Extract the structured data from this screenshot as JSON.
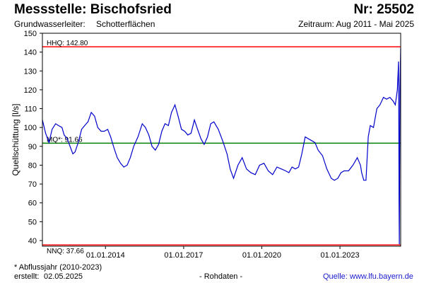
{
  "header": {
    "title": "Messstelle: Bischofsried",
    "nr": "Nr: 25502",
    "aquifer_label": "Grundwasserleiter:",
    "aquifer_value": "Schotterflächen",
    "period": "Zeitraum: Aug 2011 - Mai 2025"
  },
  "footer": {
    "footnote": "* Abflussjahr (2010-2023)",
    "created_label": "erstellt:",
    "created_date": "02.05.2025",
    "raw_data": "- Rohdaten -",
    "source_label": "Quelle:",
    "source_url": "www.lfu.bayern.de"
  },
  "colors": {
    "series": "#0000cc",
    "hhq": "#ff0000",
    "nnq": "#ff0000",
    "mq": "#008000",
    "axis": "#000000"
  },
  "chart_data": {
    "type": "line",
    "title": "Messstelle: Bischofsried",
    "ylabel": "Quellschüttung [l/s]",
    "xlabel": "",
    "ylim": [
      37,
      150
    ],
    "xlim": [
      "2011-08-01",
      "2025-05-01"
    ],
    "grid": false,
    "yticks": [
      40,
      50,
      60,
      70,
      80,
      90,
      100,
      110,
      120,
      130,
      140,
      150
    ],
    "xticks": [
      "01.01.2014",
      "01.01.2017",
      "01.01.2020",
      "01.01.2023"
    ],
    "reference_lines": [
      {
        "label": "HHQ: 142.80",
        "value": 142.8
      },
      {
        "label": "MQ*: 91.66",
        "value": 91.66
      },
      {
        "label": "NNQ: 37.66",
        "value": 37.66
      }
    ],
    "series": [
      {
        "x": [
          "2011-08-01",
          "2011-09-15",
          "2011-11-01",
          "2011-12-15",
          "2012-02-01",
          "2012-03-15",
          "2012-05-01",
          "2012-06-01",
          "2012-07-15",
          "2012-09-01",
          "2012-10-01",
          "2012-11-01",
          "2012-12-15",
          "2013-02-01",
          "2013-03-15",
          "2013-05-01",
          "2013-06-15",
          "2013-08-01",
          "2013-09-15",
          "2013-11-01",
          "2013-12-15",
          "2014-02-01",
          "2014-03-15",
          "2014-05-01",
          "2014-06-15",
          "2014-08-01",
          "2014-09-15",
          "2014-11-01",
          "2014-12-15",
          "2015-02-01",
          "2015-04-01",
          "2015-06-01",
          "2015-07-15",
          "2015-09-01",
          "2015-10-15",
          "2015-12-01",
          "2016-01-15",
          "2016-03-01",
          "2016-04-15",
          "2016-06-01",
          "2016-07-15",
          "2016-09-01",
          "2016-10-15",
          "2016-12-01",
          "2017-01-15",
          "2017-03-01",
          "2017-04-15",
          "2017-06-01",
          "2017-07-15",
          "2017-09-01",
          "2017-10-15",
          "2017-12-01",
          "2018-01-15",
          "2018-03-01",
          "2018-05-01",
          "2018-07-01",
          "2018-09-01",
          "2018-10-15",
          "2018-12-01",
          "2019-02-01",
          "2019-04-01",
          "2019-06-01",
          "2019-08-01",
          "2019-10-01",
          "2019-12-01",
          "2020-02-01",
          "2020-04-01",
          "2020-06-01",
          "2020-08-01",
          "2020-10-01",
          "2020-12-01",
          "2021-01-15",
          "2021-03-01",
          "2021-04-15",
          "2021-06-01",
          "2021-07-15",
          "2021-09-01",
          "2021-10-15",
          "2021-12-01",
          "2022-01-15",
          "2022-03-01",
          "2022-05-01",
          "2022-07-01",
          "2022-09-01",
          "2022-10-15",
          "2022-12-01",
          "2023-01-15",
          "2023-03-01",
          "2023-05-01",
          "2023-07-01",
          "2023-09-01",
          "2023-10-15",
          "2023-11-01",
          "2023-12-01",
          "2024-01-01",
          "2024-02-01",
          "2024-03-01",
          "2024-04-15",
          "2024-06-01",
          "2024-07-15",
          "2024-09-01",
          "2024-10-15",
          "2024-12-01",
          "2025-01-15",
          "2025-02-15",
          "2025-03-15",
          "2025-04-01",
          "2025-04-05",
          "2025-04-08",
          "2025-04-12",
          "2025-04-20",
          "2025-05-01"
        ],
        "y": [
          104,
          97,
          92,
          99,
          102,
          101,
          100,
          96,
          94,
          89,
          86,
          87,
          92,
          99,
          101,
          103,
          108,
          106,
          100,
          98,
          98,
          99,
          95,
          89,
          84,
          81,
          79,
          80,
          84,
          90,
          95,
          102,
          100,
          96,
          90,
          88,
          91,
          98,
          102,
          101,
          108,
          112,
          106,
          99,
          98,
          96,
          97,
          104,
          99,
          94,
          91,
          95,
          102,
          103,
          99,
          93,
          86,
          78,
          73,
          80,
          84,
          78,
          76,
          75,
          80,
          81,
          77,
          75,
          79,
          78,
          77,
          76,
          79,
          78,
          79,
          86,
          95,
          94,
          93,
          92,
          88,
          85,
          78,
          73,
          72,
          73,
          76,
          77,
          77,
          80,
          84,
          80,
          76,
          72,
          72,
          95,
          101,
          100,
          110,
          112,
          116,
          115,
          116,
          114,
          112,
          120,
          135,
          100,
          60,
          38,
          120,
          142
        ]
      }
    ]
  }
}
